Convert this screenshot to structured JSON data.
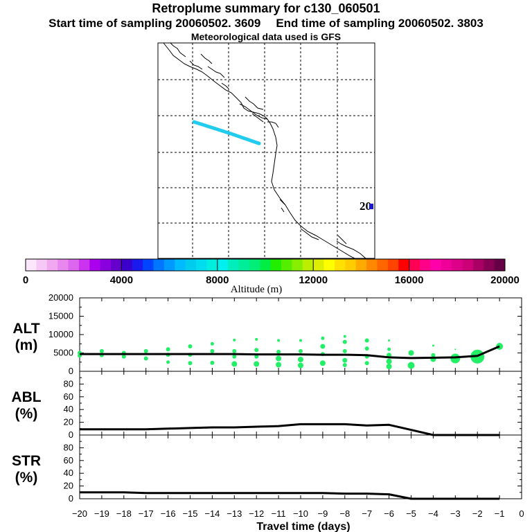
{
  "header": {
    "title": "Retroplume summary for c130_060501",
    "start_label": "Start time of sampling 20060502.  3609",
    "end_label": "End time of sampling 20060502.  3803",
    "met_label": "Meteorological data used is GFS"
  },
  "map": {
    "marker_text": "20",
    "trajectory_color": "#22ccee",
    "trajectory_path_lonlat": [
      [
        -132.0,
        43.0
      ],
      [
        -127.0,
        41.4
      ],
      [
        -123.0,
        40.0
      ]
    ]
  },
  "colorbar": {
    "title": "Altitude (m)",
    "tick_labels": [
      "0",
      "4000",
      "8000",
      "12000",
      "16000",
      "20000"
    ],
    "range": [
      0,
      20000
    ],
    "colors": [
      "#fbe6fb",
      "#f5c8f5",
      "#f0a8f0",
      "#e888ee",
      "#dd66ee",
      "#cc33ee",
      "#aa00ee",
      "#8800dd",
      "#6600cc",
      "#3a00cc",
      "#1a1aee",
      "#0044ff",
      "#0077ff",
      "#0099ff",
      "#00bbff",
      "#00ccee",
      "#00ddee",
      "#00eedd",
      "#00f0f0",
      "#00eebb",
      "#00ee99",
      "#00ee77",
      "#00ee44",
      "#22ee00",
      "#55ee00",
      "#88ee00",
      "#bbee00",
      "#ddee00",
      "#ffff00",
      "#ffe000",
      "#ffcc00",
      "#ffaa00",
      "#ff8800",
      "#ff6600",
      "#ff4400",
      "#ff0000",
      "#ff0055",
      "#ff0088",
      "#ff00aa",
      "#ee0099",
      "#dd0088",
      "#cc0077",
      "#aa0066",
      "#880055",
      "#660044"
    ]
  },
  "chart_data": [
    {
      "type": "line",
      "panel_label": "ALT\n(m)",
      "label_line1": "ALT",
      "label_line2": "(m)",
      "x": [
        -20,
        -19,
        -18,
        -17,
        -16,
        -15,
        -14,
        -13,
        -12,
        -11,
        -10,
        -9,
        -8,
        -7,
        -6,
        -5,
        -4,
        -3,
        -2,
        -1
      ],
      "y": [
        4700,
        4700,
        4700,
        4700,
        4700,
        4700,
        4700,
        4700,
        4600,
        4600,
        4600,
        4500,
        4500,
        4400,
        3800,
        3600,
        3700,
        3800,
        4200,
        6800
      ],
      "ylim": [
        0,
        20000
      ],
      "y_ticks": [
        "0",
        "5000",
        "10000",
        "15000",
        "20000"
      ],
      "xlim": [
        -20,
        0
      ],
      "line_color": "#000000",
      "scatter_color": "#22ee66",
      "scatter_points": [
        {
          "x": -20,
          "y": 5000,
          "s": 3
        },
        {
          "x": -20,
          "y": 4300,
          "s": 3
        },
        {
          "x": -19,
          "y": 5500,
          "s": 3
        },
        {
          "x": -19,
          "y": 4400,
          "s": 3
        },
        {
          "x": -18,
          "y": 5000,
          "s": 3
        },
        {
          "x": -18,
          "y": 4000,
          "s": 3
        },
        {
          "x": -17,
          "y": 5500,
          "s": 3
        },
        {
          "x": -17,
          "y": 3500,
          "s": 3
        },
        {
          "x": -16,
          "y": 6000,
          "s": 3
        },
        {
          "x": -16,
          "y": 4500,
          "s": 3
        },
        {
          "x": -16,
          "y": 2500,
          "s": 2.5
        },
        {
          "x": -15,
          "y": 6800,
          "s": 3
        },
        {
          "x": -15,
          "y": 4500,
          "s": 3
        },
        {
          "x": -15,
          "y": 2200,
          "s": 3
        },
        {
          "x": -14,
          "y": 7500,
          "s": 2.5
        },
        {
          "x": -14,
          "y": 5500,
          "s": 3
        },
        {
          "x": -14,
          "y": 2300,
          "s": 3
        },
        {
          "x": -13,
          "y": 8500,
          "s": 2
        },
        {
          "x": -13,
          "y": 5500,
          "s": 3
        },
        {
          "x": -13,
          "y": 4000,
          "s": 3
        },
        {
          "x": -13,
          "y": 2000,
          "s": 4
        },
        {
          "x": -12,
          "y": 8700,
          "s": 2
        },
        {
          "x": -12,
          "y": 5800,
          "s": 3
        },
        {
          "x": -12,
          "y": 4000,
          "s": 3
        },
        {
          "x": -12,
          "y": 2000,
          "s": 4
        },
        {
          "x": -11,
          "y": 8400,
          "s": 2
        },
        {
          "x": -11,
          "y": 5300,
          "s": 3
        },
        {
          "x": -11,
          "y": 3500,
          "s": 4
        },
        {
          "x": -11,
          "y": 1800,
          "s": 4
        },
        {
          "x": -10,
          "y": 8400,
          "s": 2
        },
        {
          "x": -10,
          "y": 5500,
          "s": 3
        },
        {
          "x": -10,
          "y": 3200,
          "s": 4
        },
        {
          "x": -10,
          "y": 1600,
          "s": 4
        },
        {
          "x": -9,
          "y": 9000,
          "s": 2.5
        },
        {
          "x": -9,
          "y": 6800,
          "s": 3.5
        },
        {
          "x": -9,
          "y": 4700,
          "s": 3
        },
        {
          "x": -9,
          "y": 2200,
          "s": 4
        },
        {
          "x": -8,
          "y": 9500,
          "s": 2
        },
        {
          "x": -8,
          "y": 8000,
          "s": 3
        },
        {
          "x": -8,
          "y": 5500,
          "s": 3
        },
        {
          "x": -8,
          "y": 3000,
          "s": 3.5
        },
        {
          "x": -8,
          "y": 1700,
          "s": 3
        },
        {
          "x": -7,
          "y": 8400,
          "s": 3
        },
        {
          "x": -7,
          "y": 6200,
          "s": 3
        },
        {
          "x": -7,
          "y": 4000,
          "s": 3
        },
        {
          "x": -7,
          "y": 2200,
          "s": 3
        },
        {
          "x": -6,
          "y": 8400,
          "s": 1.5
        },
        {
          "x": -6,
          "y": 6000,
          "s": 2.5
        },
        {
          "x": -6,
          "y": 4400,
          "s": 3.5
        },
        {
          "x": -6,
          "y": 2700,
          "s": 4
        },
        {
          "x": -6,
          "y": 1300,
          "s": 4
        },
        {
          "x": -5,
          "y": 5000,
          "s": 4
        },
        {
          "x": -5,
          "y": 1600,
          "s": 5
        },
        {
          "x": -4,
          "y": 7000,
          "s": 1.5
        },
        {
          "x": -4,
          "y": 4400,
          "s": 3
        },
        {
          "x": -4,
          "y": 3300,
          "s": 4
        },
        {
          "x": -3,
          "y": 6000,
          "s": 1
        },
        {
          "x": -3,
          "y": 3500,
          "s": 7
        },
        {
          "x": -2,
          "y": 4000,
          "s": 10
        },
        {
          "x": -1,
          "y": 6800,
          "s": 5
        }
      ]
    },
    {
      "type": "line",
      "panel_label": "ABL\n(%)",
      "label_line1": "ABL",
      "label_line2": "(%)",
      "x": [
        -20,
        -19,
        -18,
        -17,
        -16,
        -15,
        -14,
        -13,
        -12,
        -11,
        -10,
        -9,
        -8,
        -7,
        -6,
        -5,
        -4,
        -3,
        -2,
        -1
      ],
      "y": [
        9,
        9,
        9,
        9,
        10,
        11,
        12,
        12,
        13,
        14,
        17,
        17,
        17,
        15,
        16,
        8,
        0,
        0,
        0,
        0
      ],
      "ylim": [
        0,
        100
      ],
      "y_ticks": [
        "0",
        "20",
        "40",
        "60",
        "80"
      ],
      "xlim": [
        -20,
        0
      ],
      "line_color": "#000000"
    },
    {
      "type": "line",
      "panel_label": "STR\n(%)",
      "label_line1": "STR",
      "label_line2": "(%)",
      "x": [
        -20,
        -19,
        -18,
        -17,
        -16,
        -15,
        -14,
        -13,
        -12,
        -11,
        -10,
        -9,
        -8,
        -7,
        -6,
        -5,
        -4,
        -3,
        -2,
        -1
      ],
      "y": [
        10,
        10,
        10,
        9,
        9,
        9,
        9,
        9,
        9,
        9,
        9,
        9,
        8,
        8,
        7,
        0,
        0,
        0,
        0,
        0
      ],
      "ylim": [
        0,
        100
      ],
      "y_ticks": [
        "0",
        "20",
        "40",
        "60",
        "80"
      ],
      "xlim": [
        -20,
        0
      ],
      "line_color": "#000000"
    }
  ],
  "x_axis": {
    "label": "Travel time (days)",
    "tick_labels": [
      "−20",
      "−19",
      "−18",
      "−17",
      "−16",
      "−15",
      "−14",
      "−13",
      "−12",
      "−11",
      "−10",
      "−9",
      "−8",
      "−7",
      "−6",
      "−5",
      "−4",
      "−3",
      "−2",
      "−1",
      "0"
    ]
  }
}
